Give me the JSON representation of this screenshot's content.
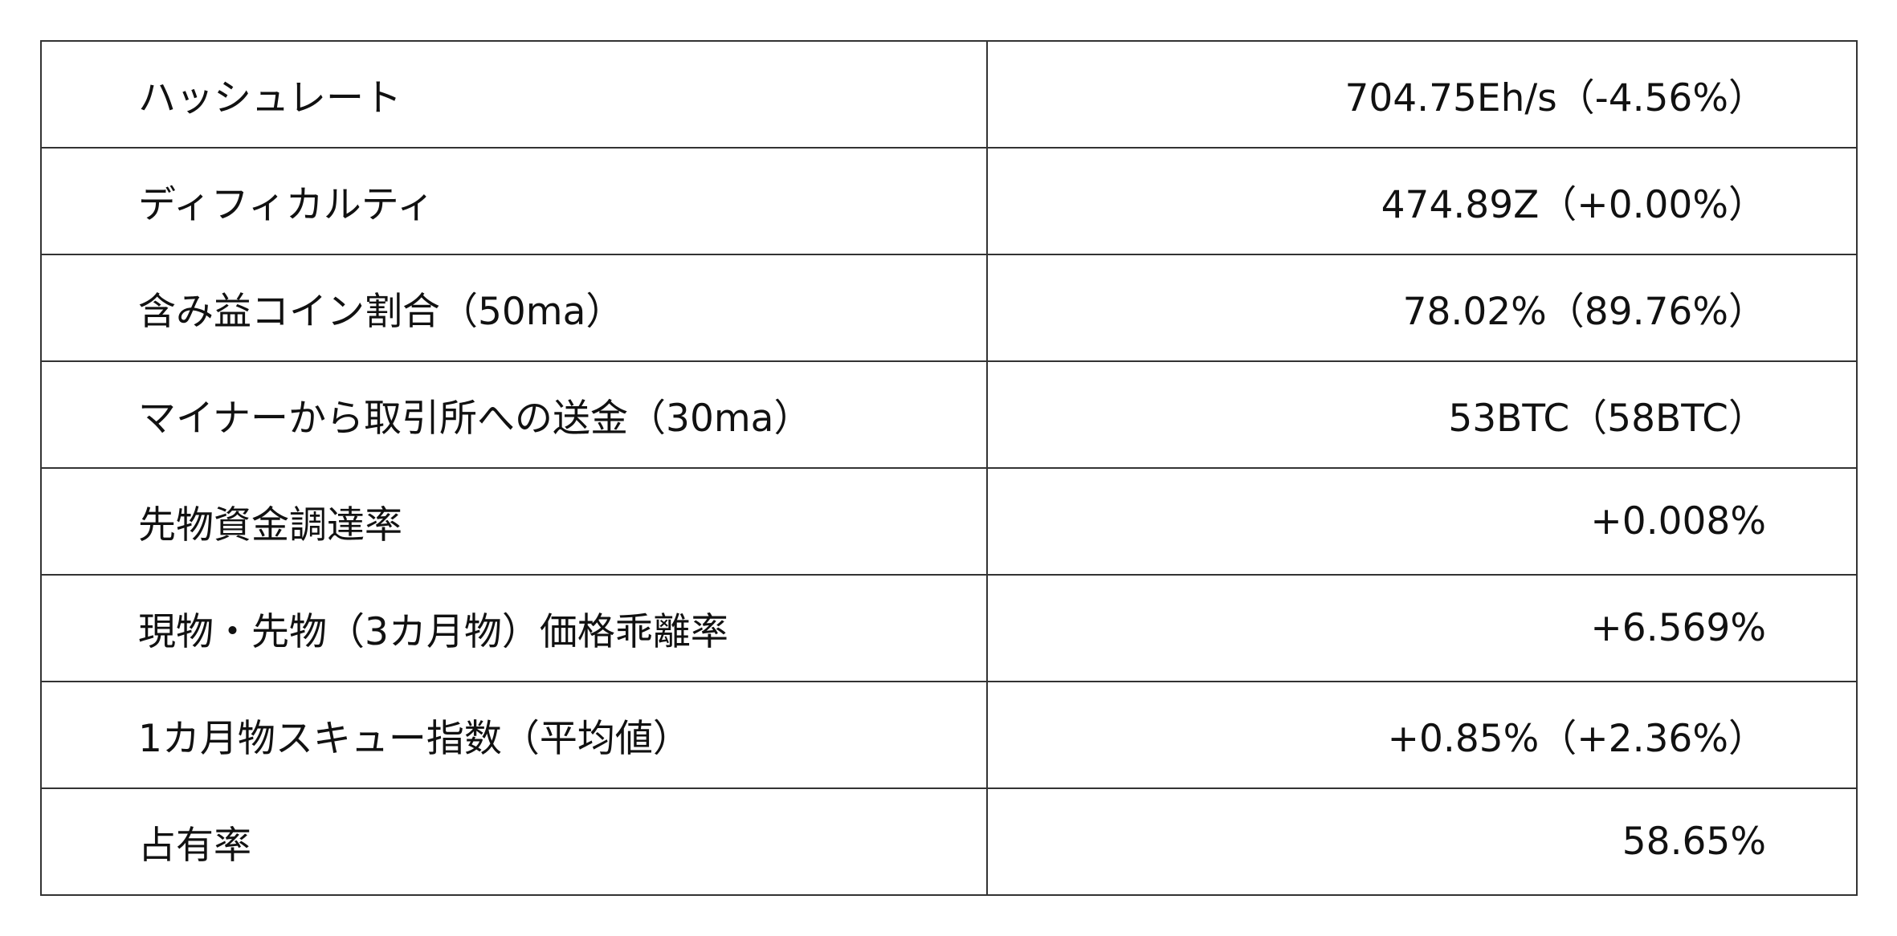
{
  "rows": [
    {
      "label": "ハッシュレート",
      "value": "704.75Eh/s（-4.56%）"
    },
    {
      "label": "ディフィカルティ",
      "value": "474.89Z（+0.00%）"
    },
    {
      "label": "含み益コイン割合（50ma）",
      "value": "78.02%（89.76%）"
    },
    {
      "label": "マイナーから取引所への送金（30ma）",
      "value": "53BTC（58BTC）"
    },
    {
      "label": "先物資金調達率",
      "value": "+0.008%"
    },
    {
      "label": "現物・先物（3カ月物）価格乖離率",
      "value": "+6.569%"
    },
    {
      "label": "1カ月物スキュー指数（平均値）",
      "value": "+0.85%（+2.36%）"
    },
    {
      "label": "占有率",
      "value": "58.65%"
    }
  ]
}
